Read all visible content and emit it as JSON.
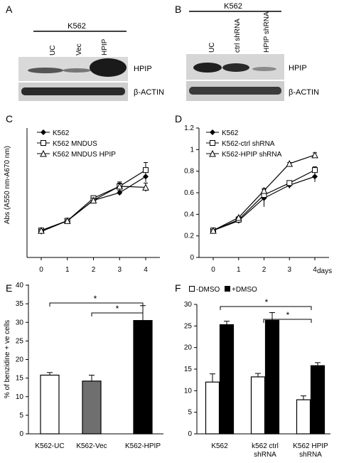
{
  "panel_letters": {
    "a": "A",
    "b": "B",
    "c": "C",
    "d": "D",
    "e": "E",
    "f": "F"
  },
  "blots": {
    "A": {
      "cell_line": "K562",
      "lanes": [
        "UC",
        "Vec",
        "HPIP"
      ],
      "bands": [
        "HPIP",
        "β-ACTIN"
      ]
    },
    "B": {
      "cell_line": "K562",
      "lanes": [
        "UC",
        "ctrl shRNA",
        "HPIP shRNA"
      ],
      "bands": [
        "HPIP",
        "β-ACTIN"
      ]
    }
  },
  "chart_data": [
    {
      "id": "C",
      "type": "line",
      "ylabel": "Abs (A550 nm-A670 nm)",
      "x": [
        0,
        1,
        2,
        3,
        4
      ],
      "series": [
        {
          "name": "K562",
          "marker": "diamond",
          "values": [
            0.24,
            0.34,
            0.53,
            0.6,
            0.75
          ],
          "err": [
            0.01,
            0.01,
            0.02,
            0.02,
            0.05
          ]
        },
        {
          "name": "K562 MNDUS",
          "marker": "square",
          "values": [
            0.25,
            0.34,
            0.55,
            0.66,
            0.81
          ],
          "err": [
            0.01,
            0.01,
            0.02,
            0.03,
            0.07
          ]
        },
        {
          "name": "K562 MNDUS HPIP",
          "marker": "triangle",
          "values": [
            0.25,
            0.34,
            0.53,
            0.66,
            0.65
          ],
          "err": [
            0.01,
            0.01,
            0.02,
            0.04,
            0.04
          ]
        }
      ]
    },
    {
      "id": "D",
      "type": "line",
      "xlabel": "days",
      "x": [
        0,
        1,
        2,
        3,
        4
      ],
      "yticks": [
        "0",
        "0.2",
        "0.4",
        "0.6",
        "0.8",
        "1",
        "1.2"
      ],
      "ylim": [
        0,
        1.2
      ],
      "series": [
        {
          "name": "K562",
          "marker": "diamond",
          "values": [
            0.25,
            0.34,
            0.55,
            0.67,
            0.75
          ],
          "err": [
            0.01,
            0.01,
            0.08,
            0.03,
            0.05
          ]
        },
        {
          "name": "K562-ctrl shRNA",
          "marker": "square",
          "values": [
            0.25,
            0.35,
            0.58,
            0.69,
            0.81
          ],
          "err": [
            0.01,
            0.01,
            0.05,
            0.02,
            0.03
          ]
        },
        {
          "name": "K562-HPIP shRNA",
          "marker": "triangle",
          "values": [
            0.25,
            0.37,
            0.62,
            0.87,
            0.95
          ],
          "err": [
            0.01,
            0.01,
            0.02,
            0.01,
            0.02
          ]
        }
      ]
    },
    {
      "id": "E",
      "type": "bar",
      "ylabel": "% of benzidine + ve cells",
      "categories": [
        "K562-UC",
        "K562-Vec",
        "K562-HPIP"
      ],
      "values": [
        15.8,
        14.2,
        30.5
      ],
      "err": [
        0.7,
        1.6,
        4.0
      ],
      "colors": [
        "#ffffff",
        "#6f6f6f",
        "#000000"
      ],
      "yticks": [
        "0",
        "5",
        "10",
        "15",
        "20",
        "25",
        "30",
        "35",
        "40"
      ],
      "ylim": [
        0,
        40
      ],
      "sig_label": "*"
    },
    {
      "id": "F",
      "type": "bar",
      "categories": [
        [
          "K562"
        ],
        [
          "k562 ctrl",
          "shRNA"
        ],
        [
          "K562 HPIP",
          "shRNA"
        ]
      ],
      "yticks": [
        "0",
        "5",
        "10",
        "15",
        "20",
        "25",
        "30"
      ],
      "ylim": [
        0,
        30
      ],
      "series": [
        {
          "name": "-DMSO",
          "color": "#ffffff",
          "values": [
            12.0,
            13.2,
            7.9
          ],
          "err": [
            1.9,
            0.8,
            0.9
          ]
        },
        {
          "name": "+DMSO",
          "color": "#000000",
          "values": [
            25.3,
            26.3,
            15.8
          ],
          "err": [
            0.8,
            1.8,
            0.7
          ]
        }
      ],
      "sig_label": "*"
    }
  ]
}
